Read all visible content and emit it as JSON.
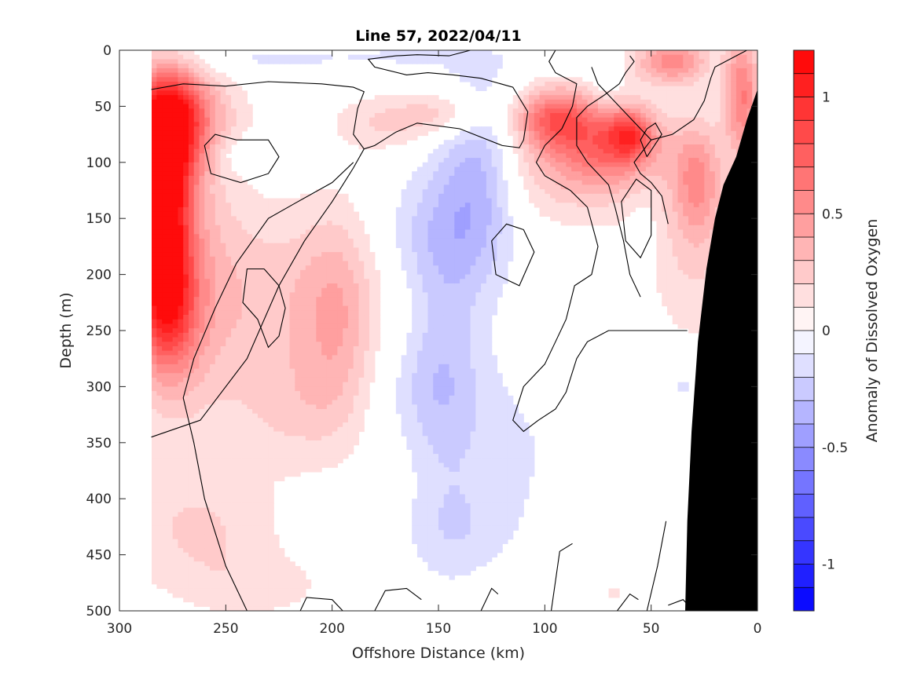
{
  "chart_data": {
    "type": "heatmap",
    "title": "Line 57, 2022/04/11",
    "xlabel": "Offshore Distance (km)",
    "ylabel": "Depth (m)",
    "colorbar_label": "Anomaly of Dissolved Oxygen",
    "xlim": [
      300,
      0
    ],
    "ylim": [
      0,
      500
    ],
    "x_reversed": true,
    "y_reversed": true,
    "x_ticks": [
      300,
      250,
      200,
      150,
      100,
      50,
      0
    ],
    "y_ticks": [
      0,
      50,
      100,
      150,
      200,
      250,
      300,
      350,
      400,
      450,
      500
    ],
    "colorbar_range": [
      -1.2,
      1.2
    ],
    "colorbar_ticks": [
      1,
      0.5,
      0,
      -0.5,
      -1
    ],
    "colorbar_tick_labels": [
      "1",
      "0.5",
      "0",
      "-0.5",
      "-1"
    ],
    "colorbar_levels": 24,
    "colormap": {
      "negative": "#0000ff",
      "zero": "#ffffff",
      "positive": "#ff0000"
    },
    "data_extent_x": [
      285,
      0
    ],
    "bathymetry_color": "#000000",
    "bathymetry": [
      {
        "x": 0,
        "depth": 35
      },
      {
        "x": 5,
        "depth": 62
      },
      {
        "x": 10,
        "depth": 95
      },
      {
        "x": 16,
        "depth": 120
      },
      {
        "x": 20,
        "depth": 150
      },
      {
        "x": 24,
        "depth": 195
      },
      {
        "x": 28,
        "depth": 260
      },
      {
        "x": 31,
        "depth": 340
      },
      {
        "x": 33,
        "depth": 420
      },
      {
        "x": 34,
        "depth": 500
      }
    ],
    "anomaly_features": [
      {
        "x": 278,
        "depth": 75,
        "value": 1.1,
        "sx": 11,
        "sy": 40
      },
      {
        "x": 280,
        "depth": 150,
        "value": 0.85,
        "sx": 8,
        "sy": 45
      },
      {
        "x": 278,
        "depth": 225,
        "value": 0.75,
        "sx": 10,
        "sy": 45
      },
      {
        "x": 272,
        "depth": 195,
        "value": 0.3,
        "sx": 18,
        "sy": 100
      },
      {
        "x": 270,
        "depth": 55,
        "value": 0.35,
        "sx": 18,
        "sy": 25
      },
      {
        "x": 225,
        "depth": 220,
        "value": 0.25,
        "sx": 35,
        "sy": 60
      },
      {
        "x": 197,
        "depth": 240,
        "value": 0.25,
        "sx": 12,
        "sy": 65
      },
      {
        "x": 218,
        "depth": 320,
        "value": 0.18,
        "sx": 22,
        "sy": 40
      },
      {
        "x": 262,
        "depth": 430,
        "value": 0.2,
        "sx": 28,
        "sy": 40
      },
      {
        "x": 233,
        "depth": 480,
        "value": 0.12,
        "sx": 25,
        "sy": 20
      },
      {
        "x": 240,
        "depth": 93,
        "value": -0.15,
        "sx": 8,
        "sy": 10
      },
      {
        "x": 233,
        "depth": 8,
        "value": -0.12,
        "sx": 40,
        "sy": 10
      },
      {
        "x": 165,
        "depth": 5,
        "value": -0.08,
        "sx": 20,
        "sy": 8
      },
      {
        "x": 175,
        "depth": 65,
        "value": 0.2,
        "sx": 18,
        "sy": 18
      },
      {
        "x": 145,
        "depth": 55,
        "value": 0.25,
        "sx": 15,
        "sy": 15
      },
      {
        "x": 130,
        "depth": 110,
        "value": -0.35,
        "sx": 12,
        "sy": 65
      },
      {
        "x": 147,
        "depth": 250,
        "value": -0.18,
        "sx": 12,
        "sy": 130
      },
      {
        "x": 118,
        "depth": 360,
        "value": -0.12,
        "sx": 20,
        "sy": 60
      },
      {
        "x": 155,
        "depth": 165,
        "value": -0.18,
        "sx": 18,
        "sy": 40
      },
      {
        "x": 157,
        "depth": 300,
        "value": -0.15,
        "sx": 18,
        "sy": 40
      },
      {
        "x": 142,
        "depth": 430,
        "value": -0.12,
        "sx": 18,
        "sy": 30
      },
      {
        "x": 95,
        "depth": 60,
        "value": 0.55,
        "sx": 12,
        "sy": 18
      },
      {
        "x": 70,
        "depth": 85,
        "value": 0.45,
        "sx": 18,
        "sy": 25
      },
      {
        "x": 60,
        "depth": 75,
        "value": 0.5,
        "sx": 7,
        "sy": 15
      },
      {
        "x": 85,
        "depth": 95,
        "value": 0.3,
        "sx": 30,
        "sy": 40
      },
      {
        "x": 40,
        "depth": 10,
        "value": 0.55,
        "sx": 12,
        "sy": 14
      },
      {
        "x": 28,
        "depth": 115,
        "value": 0.4,
        "sx": 8,
        "sy": 35
      },
      {
        "x": 30,
        "depth": 180,
        "value": 0.2,
        "sx": 16,
        "sy": 60
      },
      {
        "x": 7,
        "depth": 40,
        "value": 0.6,
        "sx": 6,
        "sy": 40
      },
      {
        "x": 72,
        "depth": 30,
        "value": -0.12,
        "sx": 6,
        "sy": 14
      },
      {
        "x": 53,
        "depth": 140,
        "value": -0.08,
        "sx": 6,
        "sy": 30
      },
      {
        "x": 35,
        "depth": 300,
        "value": -0.15,
        "sx": 3,
        "sy": 10
      },
      {
        "x": 68,
        "depth": 485,
        "value": 0.12,
        "sx": 5,
        "sy": 8
      },
      {
        "x": 100,
        "depth": 10,
        "value": -0.08,
        "sx": 15,
        "sy": 8
      }
    ],
    "zero_contours": [
      [
        [
          285,
          35
        ],
        [
          270,
          30
        ],
        [
          250,
          32
        ],
        [
          230,
          28
        ],
        [
          205,
          30
        ],
        [
          190,
          33
        ],
        [
          185,
          37
        ],
        [
          188,
          52
        ],
        [
          190,
          75
        ],
        [
          185,
          88
        ],
        [
          180,
          85
        ],
        [
          170,
          73
        ],
        [
          160,
          65
        ],
        [
          140,
          70
        ],
        [
          120,
          85
        ],
        [
          112,
          87
        ],
        [
          110,
          80
        ],
        [
          108,
          55
        ],
        [
          115,
          33
        ],
        [
          130,
          25
        ],
        [
          143,
          22
        ],
        [
          155,
          20
        ],
        [
          165,
          22
        ],
        [
          180,
          15
        ],
        [
          183,
          8
        ],
        [
          170,
          5
        ],
        [
          160,
          4
        ],
        [
          145,
          5
        ],
        [
          135,
          0
        ]
      ],
      [
        [
          185,
          88
        ],
        [
          190,
          105
        ],
        [
          195,
          120
        ],
        [
          200,
          135
        ],
        [
          213,
          170
        ],
        [
          225,
          210
        ],
        [
          240,
          275
        ],
        [
          262,
          330
        ],
        [
          285,
          345
        ]
      ],
      [
        [
          190,
          100
        ],
        [
          200,
          118
        ],
        [
          217,
          136
        ],
        [
          230,
          150
        ],
        [
          245,
          190
        ],
        [
          255,
          230
        ],
        [
          265,
          275
        ],
        [
          270,
          310
        ],
        [
          265,
          350
        ],
        [
          260,
          400
        ],
        [
          250,
          460
        ],
        [
          240,
          500
        ]
      ],
      [
        [
          245,
          80
        ],
        [
          255,
          75
        ],
        [
          260,
          85
        ],
        [
          257,
          110
        ],
        [
          243,
          118
        ],
        [
          230,
          110
        ],
        [
          225,
          95
        ],
        [
          230,
          80
        ],
        [
          245,
          80
        ]
      ],
      [
        [
          232,
          195
        ],
        [
          240,
          195
        ],
        [
          242,
          225
        ],
        [
          235,
          240
        ],
        [
          230,
          265
        ],
        [
          225,
          255
        ],
        [
          222,
          230
        ],
        [
          225,
          210
        ],
        [
          232,
          195
        ]
      ],
      [
        [
          158,
          490
        ],
        [
          165,
          480
        ],
        [
          175,
          482
        ],
        [
          180,
          500
        ]
      ],
      [
        [
          195,
          500
        ],
        [
          200,
          490
        ],
        [
          212,
          488
        ],
        [
          215,
          500
        ]
      ],
      [
        [
          122,
          485
        ],
        [
          125,
          480
        ],
        [
          130,
          500
        ]
      ],
      [
        [
          87,
          440
        ],
        [
          93,
          447
        ],
        [
          97,
          500
        ]
      ],
      [
        [
          56,
          490
        ],
        [
          60,
          485
        ],
        [
          66,
          500
        ]
      ],
      [
        [
          43,
          420
        ],
        [
          47,
          460
        ],
        [
          52,
          500
        ]
      ],
      [
        [
          30,
          500
        ],
        [
          35,
          490
        ],
        [
          42,
          495
        ]
      ],
      [
        [
          110,
          160
        ],
        [
          118,
          155
        ],
        [
          125,
          170
        ],
        [
          123,
          200
        ],
        [
          112,
          210
        ],
        [
          105,
          180
        ],
        [
          110,
          160
        ]
      ],
      [
        [
          80,
          140
        ],
        [
          88,
          125
        ],
        [
          100,
          112
        ],
        [
          104,
          100
        ],
        [
          100,
          85
        ],
        [
          92,
          70
        ],
        [
          87,
          50
        ],
        [
          85,
          30
        ],
        [
          95,
          20
        ],
        [
          98,
          10
        ],
        [
          95,
          0
        ]
      ],
      [
        [
          80,
          140
        ],
        [
          75,
          175
        ],
        [
          78,
          200
        ],
        [
          86,
          210
        ],
        [
          90,
          240
        ],
        [
          95,
          260
        ],
        [
          100,
          280
        ],
        [
          110,
          300
        ],
        [
          115,
          330
        ],
        [
          110,
          340
        ],
        [
          103,
          330
        ],
        [
          95,
          320
        ],
        [
          90,
          305
        ],
        [
          85,
          275
        ],
        [
          80,
          260
        ],
        [
          70,
          250
        ],
        [
          55,
          250
        ],
        [
          45,
          250
        ],
        [
          33,
          250
        ]
      ],
      [
        [
          55,
          220
        ],
        [
          60,
          200
        ],
        [
          63,
          170
        ],
        [
          67,
          140
        ],
        [
          70,
          120
        ],
        [
          75,
          110
        ],
        [
          80,
          100
        ],
        [
          85,
          85
        ],
        [
          85,
          60
        ],
        [
          80,
          50
        ],
        [
          72,
          40
        ],
        [
          65,
          30
        ],
        [
          62,
          20
        ],
        [
          58,
          10
        ],
        [
          60,
          5
        ]
      ],
      [
        [
          42,
          155
        ],
        [
          45,
          130
        ],
        [
          50,
          118
        ],
        [
          55,
          110
        ],
        [
          58,
          100
        ],
        [
          54,
          90
        ],
        [
          50,
          80
        ],
        [
          55,
          70
        ],
        [
          60,
          60
        ],
        [
          70,
          40
        ],
        [
          75,
          30
        ],
        [
          78,
          15
        ]
      ],
      [
        [
          50,
          80
        ],
        [
          40,
          75
        ],
        [
          30,
          62
        ],
        [
          25,
          45
        ],
        [
          22,
          25
        ],
        [
          20,
          15
        ],
        [
          10,
          5
        ],
        [
          5,
          0
        ]
      ],
      [
        [
          52,
          95
        ],
        [
          55,
          80
        ],
        [
          52,
          70
        ],
        [
          48,
          65
        ],
        [
          45,
          75
        ],
        [
          52,
          95
        ]
      ],
      [
        [
          62,
          170
        ],
        [
          64,
          135
        ],
        [
          57,
          115
        ],
        [
          50,
          125
        ],
        [
          50,
          165
        ],
        [
          55,
          185
        ],
        [
          62,
          170
        ]
      ]
    ]
  }
}
